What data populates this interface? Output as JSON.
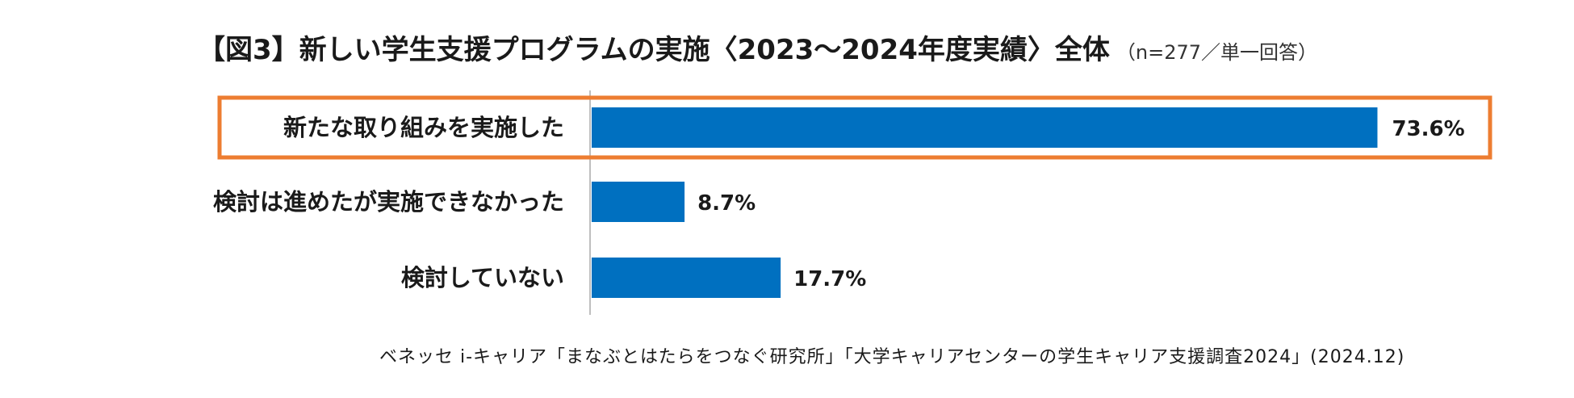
{
  "chart_data": {
    "type": "bar",
    "orientation": "horizontal",
    "title": "【図3】新しい学生支援プログラムの実施〈2023～2024年度実績〉全体",
    "subtitle": "（n=277／単一回答）",
    "categories": [
      "新たな取り組みを実施した",
      "検討は進めたが実施できなかった",
      "検討していない"
    ],
    "values": [
      73.6,
      8.7,
      17.7
    ],
    "value_labels": [
      "73.6%",
      "8.7%",
      "17.7%"
    ],
    "xlim": [
      0,
      75
    ],
    "highlighted_category": "新たな取り組みを実施した",
    "bar_color": "#0070C0",
    "highlight_color": "#ED7D31",
    "axis_color": "#BFBFBF",
    "grid": false,
    "source": "ベネッセ i-キャリア「まなぶとはたらをつなぐ研究所」「大学キャリアセンターの学生キャリア支援調査2024」(2024.12)"
  }
}
